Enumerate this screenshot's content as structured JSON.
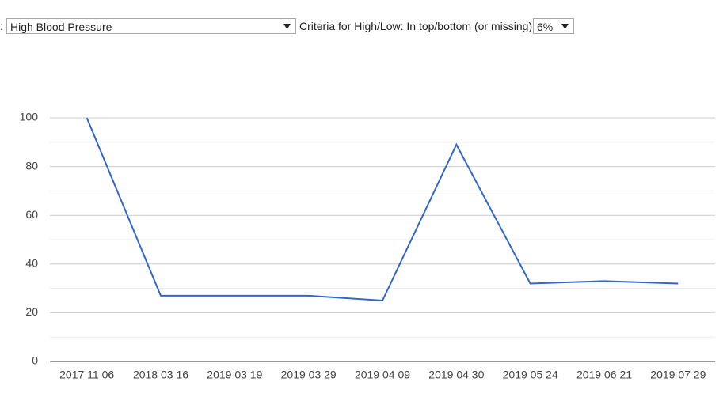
{
  "controls": {
    "metric_label": ":",
    "metric_select": "High Blood Pressure",
    "criteria_label": "Criteria for High/Low: In top/bottom (or missing)",
    "criteria_select": "6%"
  },
  "chart_data": {
    "type": "line",
    "categories": [
      "2017 11 06",
      "2018 03 16",
      "2019 03 19",
      "2019 03 29",
      "2019 04 09",
      "2019 04 30",
      "2019 05 24",
      "2019 06 21",
      "2019 07 29"
    ],
    "values": [
      100,
      27,
      27,
      27,
      25,
      89,
      32,
      33,
      32
    ],
    "color": "#3366cc",
    "ylim": [
      0,
      100
    ],
    "yticks": [
      0,
      20,
      40,
      60,
      80,
      100
    ],
    "grid": true,
    "minor_grid": true
  }
}
